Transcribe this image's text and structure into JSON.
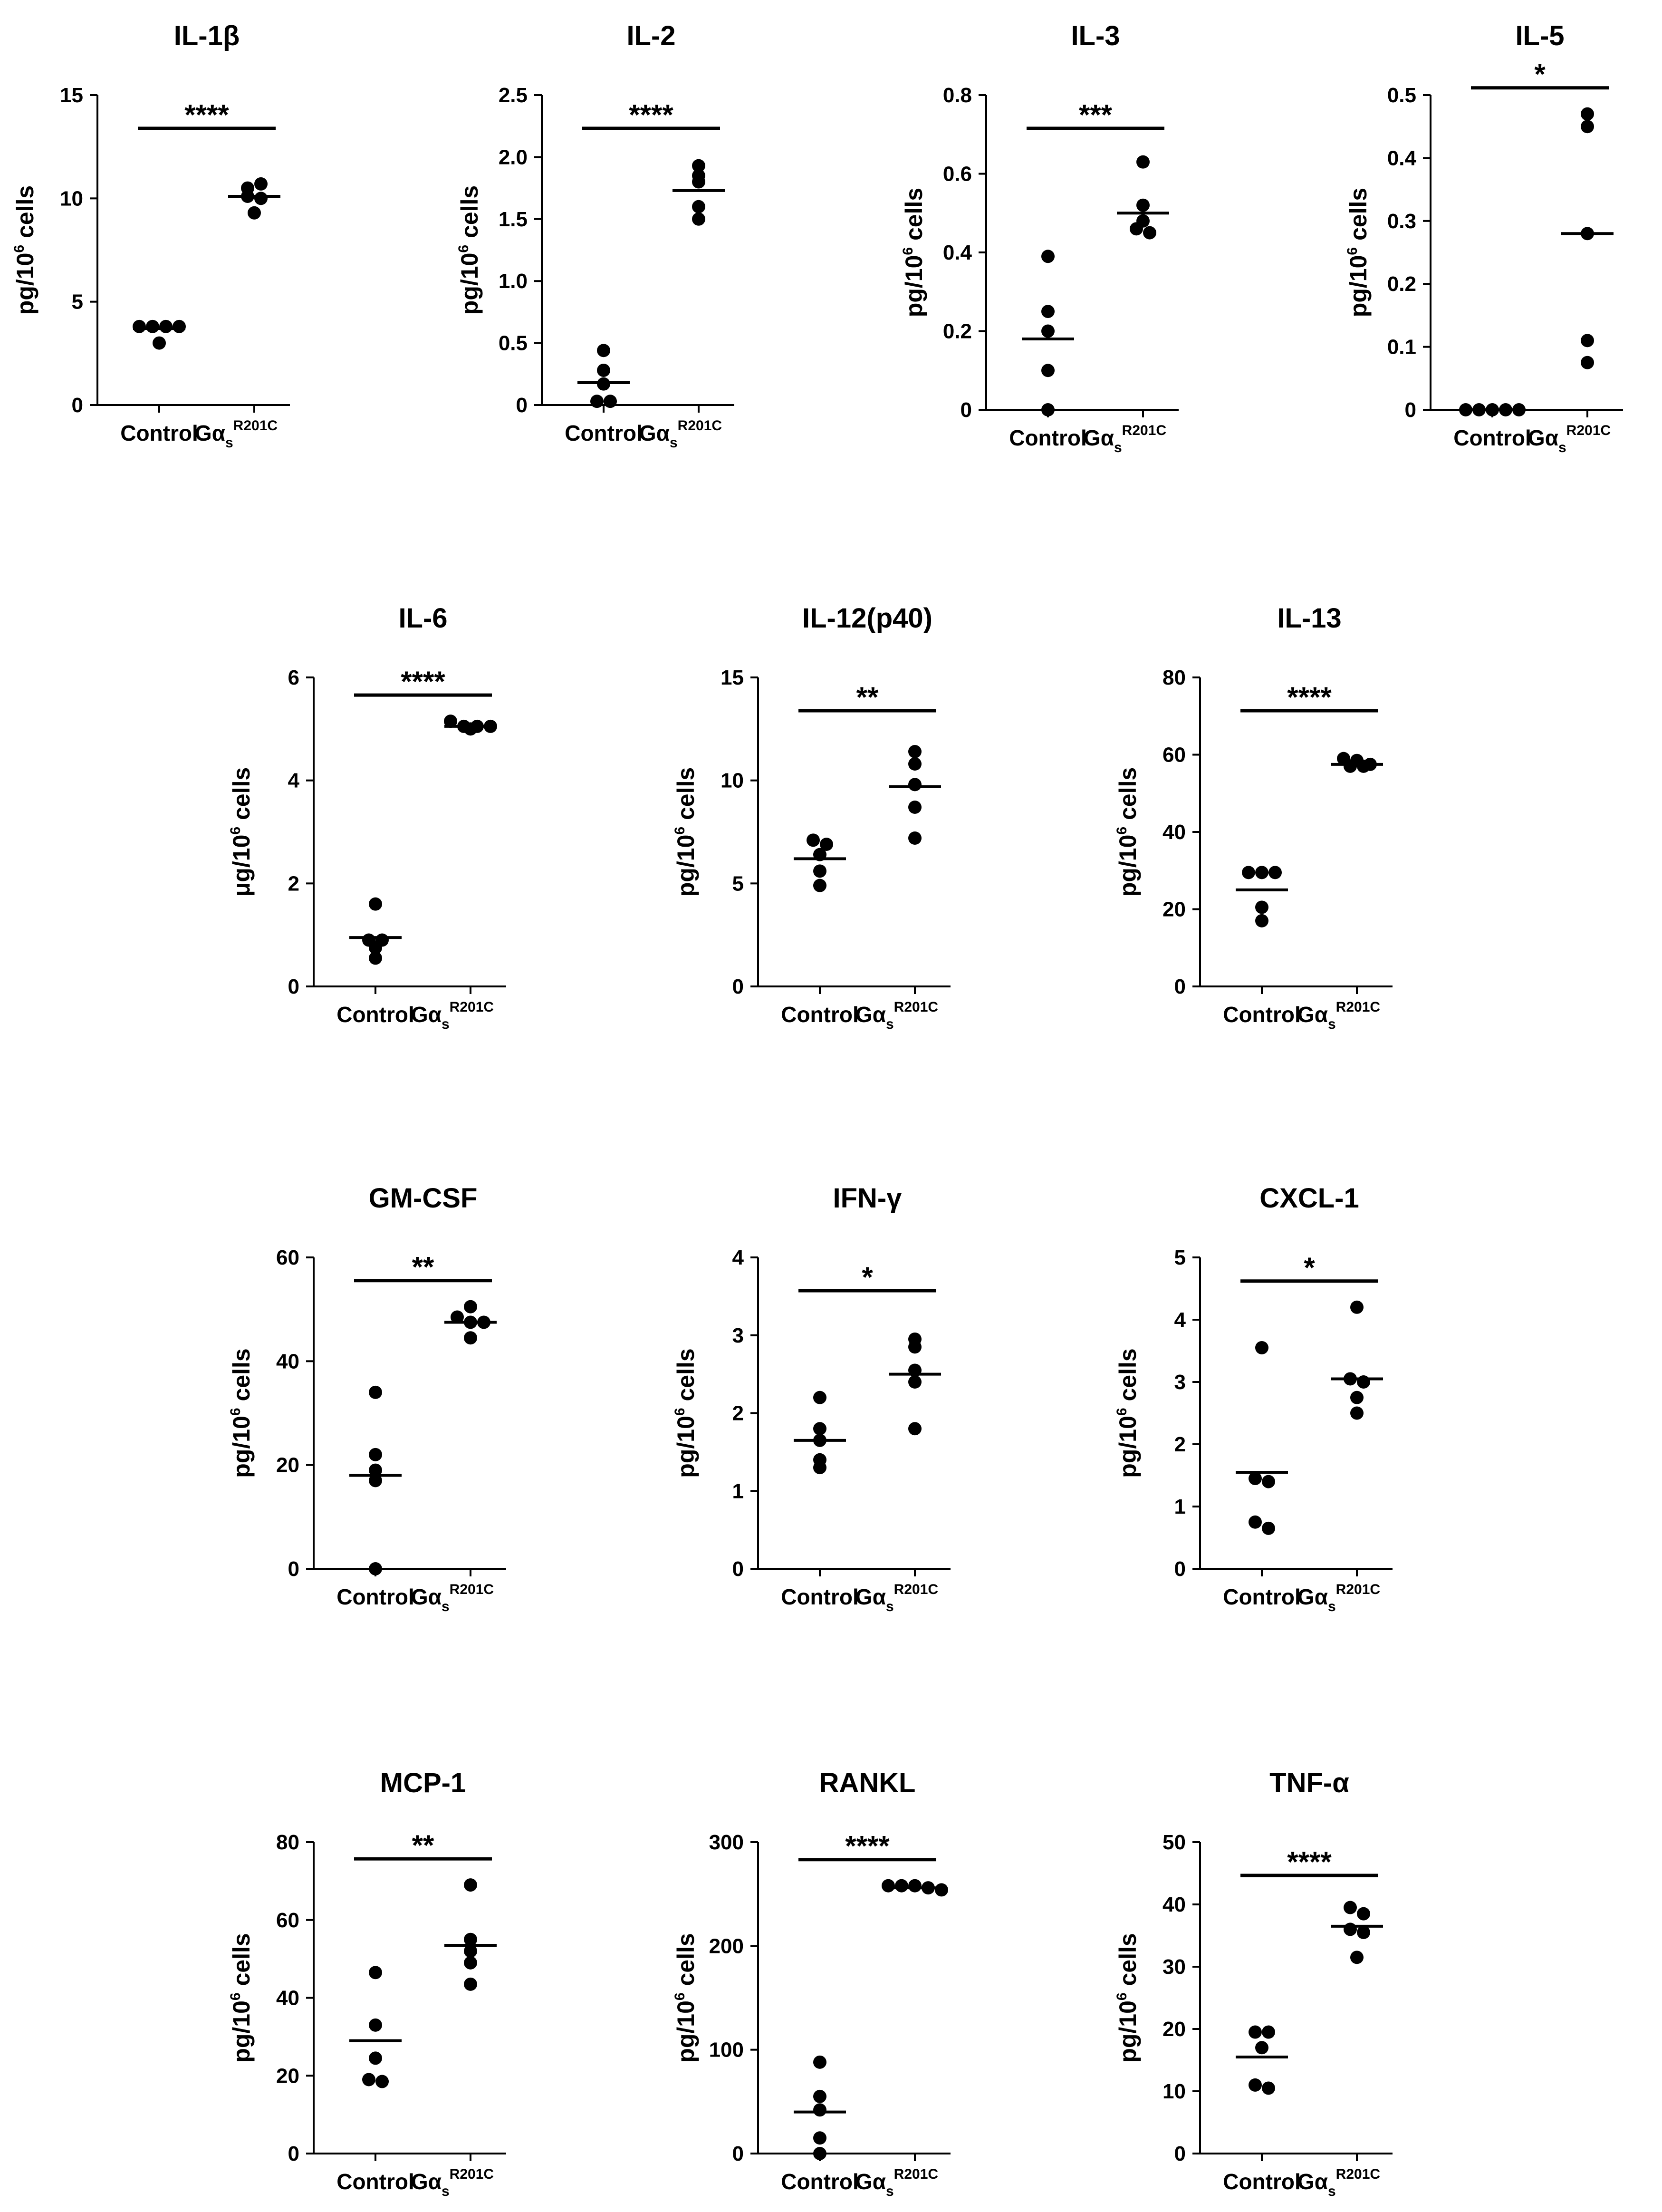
{
  "figure": {
    "ylabel_pg": "pg/10",
    "ylabel_ug": "μg/10",
    "ylabel_exp": "6",
    "ylabel_tail": " cells",
    "categories": [
      "Control",
      "Gα"
    ],
    "mutant_sub": "s",
    "mutant_sup": "R201C"
  },
  "chart_data": [
    {
      "type": "scatter",
      "title": "IL-1β",
      "unit": "pg",
      "ylim": [
        0,
        15
      ],
      "yticks": [
        0,
        5,
        10,
        15
      ],
      "significance": "****",
      "control": [
        3.8,
        3.8,
        3.8,
        3.8,
        3.0
      ],
      "mutant": [
        10.5,
        10.7,
        10.1,
        10.0,
        9.3
      ],
      "means": [
        3.7,
        10.1
      ]
    },
    {
      "type": "scatter",
      "title": "IL-2",
      "unit": "pg",
      "ylim": [
        0,
        2.5
      ],
      "yticks": [
        0,
        0.5,
        1.0,
        1.5,
        2.0,
        2.5
      ],
      "significance": "****",
      "control": [
        0.44,
        0.28,
        0.17,
        0.03,
        0.03
      ],
      "mutant": [
        1.93,
        1.85,
        1.8,
        1.6,
        1.5
      ],
      "means": [
        0.18,
        1.73
      ]
    },
    {
      "type": "scatter",
      "title": "IL-3",
      "unit": "pg",
      "ylim": [
        0,
        0.8
      ],
      "yticks": [
        0,
        0.2,
        0.4,
        0.6,
        0.8
      ],
      "significance": "***",
      "control": [
        0.39,
        0.25,
        0.2,
        0.1,
        0.0
      ],
      "mutant": [
        0.63,
        0.52,
        0.48,
        0.46,
        0.45
      ],
      "means": [
        0.18,
        0.5
      ]
    },
    {
      "type": "scatter",
      "title": "IL-5",
      "unit": "pg",
      "ylim": [
        0,
        0.5
      ],
      "yticks": [
        0,
        0.1,
        0.2,
        0.3,
        0.4,
        0.5
      ],
      "significance": "*",
      "control": [
        0,
        0,
        0,
        0,
        0
      ],
      "mutant": [
        0.47,
        0.45,
        0.28,
        0.11,
        0.075
      ],
      "means": [
        0,
        0.28
      ]
    },
    {
      "type": "scatter",
      "title": "IL-6",
      "unit": "ug",
      "ylim": [
        0,
        6
      ],
      "yticks": [
        0,
        2,
        4,
        6
      ],
      "significance": "****",
      "control": [
        1.6,
        0.9,
        0.9,
        0.75,
        0.55
      ],
      "mutant": [
        5.15,
        5.05,
        5.05,
        5.05,
        5.0
      ],
      "means": [
        0.95,
        5.05
      ]
    },
    {
      "type": "scatter",
      "title": "IL-12(p40)",
      "unit": "pg",
      "ylim": [
        0,
        15
      ],
      "yticks": [
        0,
        5,
        10,
        15
      ],
      "significance": "**",
      "control": [
        7.1,
        6.9,
        6.4,
        5.6,
        4.9
      ],
      "mutant": [
        11.4,
        10.8,
        9.8,
        8.7,
        7.2
      ],
      "means": [
        6.2,
        9.7
      ]
    },
    {
      "type": "scatter",
      "title": "IL-13",
      "unit": "pg",
      "ylim": [
        0,
        80
      ],
      "yticks": [
        0,
        20,
        40,
        60,
        80
      ],
      "significance": "****",
      "control": [
        29.5,
        29.5,
        29.5,
        20.5,
        17.0
      ],
      "mutant": [
        59.0,
        58.5,
        57.5,
        57.0,
        57.0
      ],
      "means": [
        25.0,
        57.5
      ]
    },
    {
      "type": "scatter",
      "title": "GM-CSF",
      "unit": "pg",
      "ylim": [
        0,
        60
      ],
      "yticks": [
        0,
        20,
        40,
        60
      ],
      "significance": "**",
      "control": [
        34.0,
        22.0,
        19.0,
        17.0,
        0.0
      ],
      "mutant": [
        50.5,
        48.5,
        47.5,
        47.5,
        44.5
      ],
      "means": [
        18.0,
        47.5
      ]
    },
    {
      "type": "scatter",
      "title": "IFN-γ",
      "unit": "pg",
      "ylim": [
        0,
        4
      ],
      "yticks": [
        0,
        1,
        2,
        3,
        4
      ],
      "significance": "*",
      "control": [
        2.2,
        1.8,
        1.65,
        1.4,
        1.3
      ],
      "mutant": [
        2.95,
        2.85,
        2.55,
        2.4,
        1.8
      ],
      "means": [
        1.65,
        2.5
      ]
    },
    {
      "type": "scatter",
      "title": "CXCL-1",
      "unit": "pg",
      "ylim": [
        0,
        5
      ],
      "yticks": [
        0,
        1,
        2,
        3,
        4,
        5
      ],
      "significance": "*",
      "control": [
        3.55,
        1.45,
        1.4,
        0.75,
        0.65
      ],
      "mutant": [
        4.2,
        3.05,
        3.0,
        2.75,
        2.5
      ],
      "means": [
        1.55,
        3.05
      ]
    },
    {
      "type": "scatter",
      "title": "MCP-1",
      "unit": "pg",
      "ylim": [
        0,
        80
      ],
      "yticks": [
        0,
        20,
        40,
        60,
        80
      ],
      "significance": "**",
      "control": [
        46.5,
        33.0,
        24.5,
        19.0,
        18.5
      ],
      "mutant": [
        69.0,
        55.0,
        52.0,
        49.0,
        43.5
      ],
      "means": [
        29.0,
        53.5
      ]
    },
    {
      "type": "scatter",
      "title": "RANKL",
      "unit": "pg",
      "ylim": [
        0,
        300
      ],
      "yticks": [
        0,
        100,
        200,
        300
      ],
      "significance": "****",
      "control": [
        88.0,
        55.0,
        42.0,
        15.0,
        0.0
      ],
      "mutant": [
        258.0,
        258.0,
        258.0,
        256.0,
        254.0
      ],
      "means": [
        40.0,
        256.0
      ]
    },
    {
      "type": "scatter",
      "title": "TNF-α",
      "unit": "pg",
      "ylim": [
        0,
        50
      ],
      "yticks": [
        0,
        10,
        20,
        30,
        40,
        50
      ],
      "significance": "****",
      "control": [
        19.5,
        19.5,
        17.0,
        11.0,
        10.5
      ],
      "mutant": [
        39.5,
        38.5,
        36.0,
        35.5,
        31.5
      ],
      "means": [
        15.5,
        36.5
      ]
    }
  ]
}
